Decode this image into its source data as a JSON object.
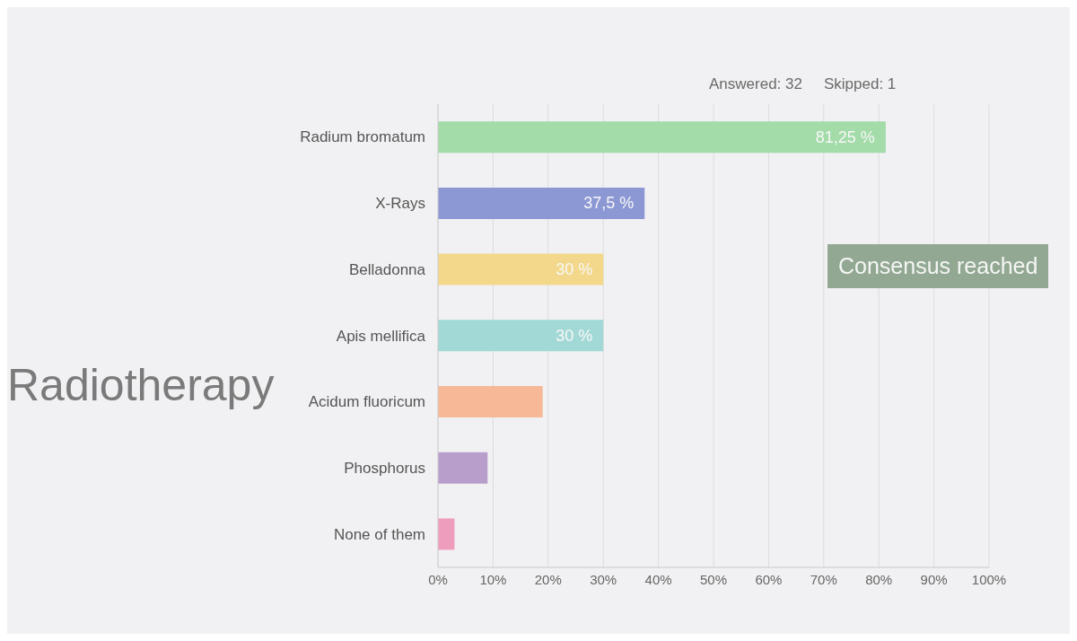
{
  "chart_data": {
    "type": "bar",
    "orientation": "horizontal",
    "title": "Radiotherapy",
    "categories": [
      "Radium bromatum",
      "X-Rays",
      "Belladonna",
      "Apis mellifica",
      "Acidum fluoricum",
      "Phosphorus",
      "None of them"
    ],
    "values": [
      81.25,
      37.5,
      30,
      30,
      19,
      9,
      3
    ],
    "colors": [
      "#a3dba9",
      "#8c98d4",
      "#f3d88b",
      "#a2d9d6",
      "#f7b897",
      "#b89fcb",
      "#ef9dbd"
    ],
    "value_labels": [
      "81,25 %",
      "37,5 %",
      "30 %",
      "30 %",
      null,
      null,
      null
    ],
    "xlim": [
      0,
      100
    ],
    "xticks": [
      {
        "value": 0,
        "label": "0%"
      },
      {
        "value": 10,
        "label": "10%"
      },
      {
        "value": 20,
        "label": "20%"
      },
      {
        "value": 30,
        "label": "30%"
      },
      {
        "value": 40,
        "label": "40%"
      },
      {
        "value": 50,
        "label": "50%"
      },
      {
        "value": 60,
        "label": "60%"
      },
      {
        "value": 70,
        "label": "70%"
      },
      {
        "value": 80,
        "label": "80%"
      },
      {
        "value": 90,
        "label": "90%"
      },
      {
        "value": 100,
        "label": "100%"
      }
    ],
    "grid": "x",
    "annotations": [
      "Answered: 32",
      "Skipped: 1",
      "Consensus reached"
    ]
  }
}
